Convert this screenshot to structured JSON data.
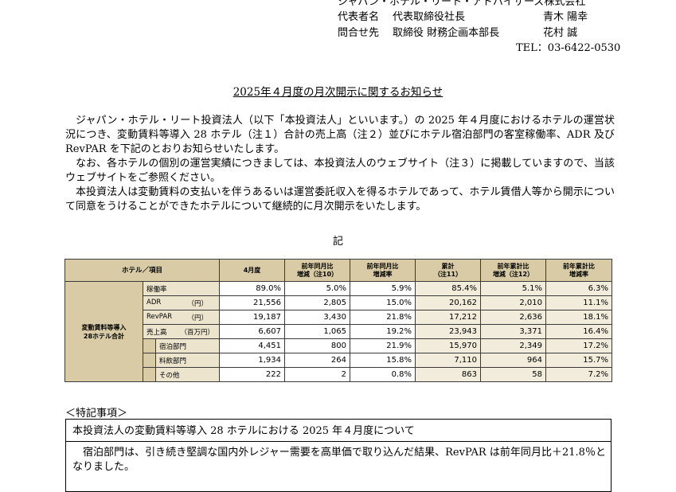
{
  "header": {
    "company": "ジャパン・ホテル・リート・アドバイザーズ株式会社",
    "rep_label": "代表者名",
    "rep_title": "代表取締役社長",
    "rep_name": "青木 陽幸",
    "contact_label": "問合せ先",
    "contact_title": "取締役 財務企画本部長",
    "contact_name": "花村 誠",
    "tel": "TEL：03-6422-0530"
  },
  "title": "2025年４月度の月次開示に関するお知らせ",
  "paragraphs": [
    "ジャパン・ホテル・リート投資法人（以下「本投資法人」といいます。）の 2025 年４月度におけるホテルの運営状況につき、変動賃料等導入 28 ホテル（注１）合計の売上高（注２）並びにホテル宿泊部門の客室稼働率、ADR 及び RevPAR を下記のとおりお知らせいたします。",
    "なお、各ホテルの個別の運営実績につきましては、本投資法人のウェブサイト（注３）に掲載していますので、当該ウェブサイトをご参照ください。",
    "本投資法人は変動賃料の支払いを伴うあるいは運営委託収入を得るホテルであって、ホテル賃借人等から開示について同意をうけることができたホテルについて継続的に月次開示をいたします。"
  ],
  "ki": "記",
  "table": {
    "headers": [
      "ホテル／項目",
      "4月度",
      "前年同月比\n増減（注10）",
      "前年同月比\n増減率",
      "累計\n（注11）",
      "前年累計比\n増減（注12）",
      "前年累計比\n増減率"
    ],
    "group_label": "変動賃料等導入\n28ホテル合計",
    "rows": [
      {
        "label": "稼働率",
        "unit": "",
        "values": [
          "89.0%",
          "5.0%",
          "5.9%",
          "85.4%",
          "5.1%",
          "6.3%"
        ]
      },
      {
        "label": "ADR",
        "unit": "（円）",
        "values": [
          "21,556",
          "2,805",
          "15.0%",
          "20,162",
          "2,010",
          "11.1%"
        ]
      },
      {
        "label": "RevPAR",
        "unit": "（円）",
        "values": [
          "19,187",
          "3,430",
          "21.8%",
          "17,212",
          "2,636",
          "18.1%"
        ]
      },
      {
        "label": "売上高",
        "unit": "（百万円）",
        "values": [
          "6,607",
          "1,065",
          "19.2%",
          "23,943",
          "3,371",
          "16.4%"
        ]
      },
      {
        "label": "宿泊部門",
        "unit": "",
        "values": [
          "4,451",
          "800",
          "21.9%",
          "15,970",
          "2,349",
          "17.2%"
        ]
      },
      {
        "label": "料飲部門",
        "unit": "",
        "values": [
          "1,934",
          "264",
          "15.8%",
          "7,110",
          "964",
          "15.7%"
        ]
      },
      {
        "label": "その他",
        "unit": "",
        "values": [
          "222",
          "2",
          "0.8%",
          "863",
          "58",
          "7.2%"
        ]
      }
    ]
  },
  "notes": {
    "heading": "＜特記事項＞",
    "box_title": "本投資法人の変動賃料等導入 28 ホテルにおける 2025 年４月度について",
    "body": "宿泊部門は、引き続き堅調な国内外レジャー需要を高単価で取り込んだ結果、RevPAR は前年同月比＋21.8％となりました。"
  }
}
